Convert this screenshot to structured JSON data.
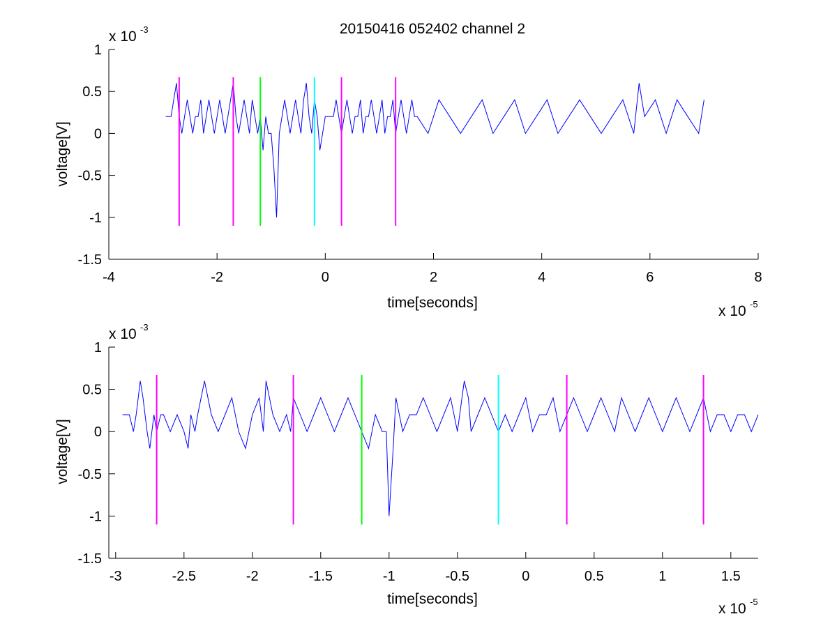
{
  "figure": {
    "title": "20150416 052402 channel 2",
    "colors": {
      "signal": "#0000ff",
      "marker_magenta": "#ff00ff",
      "marker_green": "#00ff00",
      "marker_cyan": "#00ffff",
      "axes": "#000000"
    }
  },
  "chart_data": [
    {
      "type": "line",
      "title": "20150416 052402 channel 2",
      "xlabel": "time[seconds]",
      "ylabel": "voltage[V]",
      "x_multiplier_label": {
        "base": "x 10",
        "exponent": "-5"
      },
      "y_multiplier_label": {
        "base": "x 10",
        "exponent": "-3"
      },
      "xlim": [
        -4,
        8
      ],
      "ylim": [
        -1.5,
        1
      ],
      "xticks": [
        -4,
        -2,
        0,
        2,
        4,
        6,
        8
      ],
      "xtick_labels": [
        "-4",
        "-2",
        "0",
        "2",
        "4",
        "6",
        "8"
      ],
      "yticks": [
        -1.5,
        -1,
        -0.5,
        0,
        0.5,
        1
      ],
      "ytick_labels": [
        "-1.5",
        "-1",
        "-0.5",
        "0",
        "0.5",
        "1"
      ],
      "grid": false,
      "series": [
        {
          "x": [
            -2.95,
            -2.9,
            -2.85,
            -2.8,
            -2.75,
            -2.7,
            -2.65,
            -2.6,
            -2.55,
            -2.5,
            -2.45,
            -2.4,
            -2.35,
            -2.3,
            -2.25,
            -2.2,
            -2.15,
            -2.1,
            -2.05,
            -2.0,
            -1.95,
            -1.9,
            -1.85,
            -1.8,
            -1.75,
            -1.7,
            -1.65,
            -1.6,
            -1.55,
            -1.5,
            -1.45,
            -1.4,
            -1.35,
            -1.3,
            -1.25,
            -1.2,
            -1.15,
            -1.1,
            -1.05,
            -1.0,
            -0.95,
            -0.9,
            -0.85,
            -0.8,
            -0.75,
            -0.7,
            -0.65,
            -0.6,
            -0.55,
            -0.5,
            -0.45,
            -0.4,
            -0.35,
            -0.3,
            -0.25,
            -0.2,
            -0.15,
            -0.1,
            -0.05,
            0.0,
            0.05,
            0.1,
            0.15,
            0.2,
            0.25,
            0.3,
            0.35,
            0.4,
            0.45,
            0.5,
            0.55,
            0.6,
            0.65,
            0.7,
            0.75,
            0.8,
            0.85,
            0.9,
            0.95,
            1.0,
            1.05,
            1.1,
            1.15,
            1.2,
            1.25,
            1.3,
            1.35,
            1.4,
            1.45,
            1.5,
            1.55,
            1.6,
            1.65,
            1.7,
            1.9,
            2.1,
            2.3,
            2.5,
            2.7,
            2.9,
            3.1,
            3.3,
            3.5,
            3.7,
            3.9,
            4.1,
            4.3,
            4.5,
            4.7,
            4.9,
            5.1,
            5.3,
            5.5,
            5.7,
            5.8,
            5.9,
            6.1,
            6.3,
            6.5,
            6.7,
            6.9,
            7.0
          ],
          "values": [
            0.2,
            0.2,
            0.2,
            0.4,
            0.6,
            0.2,
            0.0,
            0.2,
            0.4,
            0.2,
            0.0,
            0.2,
            0.2,
            0.4,
            0.0,
            0.2,
            0.4,
            0.2,
            0.0,
            0.2,
            0.4,
            0.2,
            0.0,
            0.2,
            0.4,
            0.6,
            0.2,
            0.0,
            0.2,
            0.4,
            0.2,
            0.0,
            0.4,
            0.2,
            0.0,
            0.2,
            -0.2,
            0.2,
            0.0,
            0.0,
            -0.4,
            -1.0,
            0.0,
            0.2,
            0.4,
            0.2,
            0.0,
            0.2,
            0.4,
            0.2,
            0.0,
            0.4,
            0.6,
            0.2,
            0.0,
            0.4,
            0.2,
            -0.2,
            0.0,
            0.2,
            0.2,
            0.2,
            0.2,
            0.4,
            0.2,
            0.0,
            0.2,
            0.4,
            0.2,
            0.0,
            0.2,
            0.2,
            0.4,
            0.0,
            0.2,
            0.2,
            0.4,
            0.2,
            0.0,
            0.2,
            0.4,
            0.0,
            0.2,
            0.2,
            0.4,
            0.0,
            0.2,
            0.4,
            0.2,
            0.0,
            0.2,
            0.4,
            0.2,
            0.2,
            0.0,
            0.4,
            0.2,
            0.0,
            0.2,
            0.4,
            0.0,
            0.2,
            0.4,
            0.0,
            0.2,
            0.4,
            0.0,
            0.2,
            0.4,
            0.2,
            0.0,
            0.2,
            0.4,
            0.0,
            0.6,
            0.2,
            0.4,
            0.0,
            0.4,
            0.2,
            0.0,
            0.4
          ]
        }
      ],
      "markers": [
        {
          "x": -2.7,
          "y_bottom": -1.1,
          "y_top": 0.67,
          "color": "#ff00ff"
        },
        {
          "x": -1.7,
          "y_bottom": -1.1,
          "y_top": 0.67,
          "color": "#ff00ff"
        },
        {
          "x": -1.2,
          "y_bottom": -1.1,
          "y_top": 0.67,
          "color": "#00ff00"
        },
        {
          "x": -0.2,
          "y_bottom": -1.1,
          "y_top": 0.67,
          "color": "#00ffff"
        },
        {
          "x": 0.3,
          "y_bottom": -1.1,
          "y_top": 0.67,
          "color": "#ff00ff"
        },
        {
          "x": 1.3,
          "y_bottom": -1.1,
          "y_top": 0.67,
          "color": "#ff00ff"
        }
      ]
    },
    {
      "type": "line",
      "xlabel": "time[seconds]",
      "ylabel": "voltage[V]",
      "x_multiplier_label": {
        "base": "x 10",
        "exponent": "-5"
      },
      "y_multiplier_label": {
        "base": "x 10",
        "exponent": "-3"
      },
      "xlim": [
        -3.05,
        1.7
      ],
      "ylim": [
        -1.5,
        1
      ],
      "xticks": [
        -3,
        -2.5,
        -2,
        -1.5,
        -1,
        -0.5,
        0,
        0.5,
        1,
        1.5
      ],
      "xtick_labels": [
        "-3",
        "-2.5",
        "-2",
        "-1.5",
        "-1",
        "-0.5",
        "0",
        "0.5",
        "1",
        "1.5"
      ],
      "yticks": [
        -1.5,
        -1,
        -0.5,
        0,
        0.5,
        1
      ],
      "ytick_labels": [
        "-1.5",
        "-1",
        "-0.5",
        "0",
        "0.5",
        "1"
      ],
      "grid": false,
      "series": [
        {
          "x": [
            -2.95,
            -2.9,
            -2.87,
            -2.85,
            -2.82,
            -2.8,
            -2.77,
            -2.75,
            -2.72,
            -2.7,
            -2.67,
            -2.65,
            -2.6,
            -2.55,
            -2.5,
            -2.47,
            -2.45,
            -2.42,
            -2.4,
            -2.35,
            -2.3,
            -2.25,
            -2.2,
            -2.15,
            -2.1,
            -2.05,
            -2.0,
            -1.95,
            -1.92,
            -1.9,
            -1.85,
            -1.8,
            -1.75,
            -1.72,
            -1.7,
            -1.65,
            -1.6,
            -1.55,
            -1.5,
            -1.45,
            -1.4,
            -1.35,
            -1.3,
            -1.25,
            -1.2,
            -1.15,
            -1.1,
            -1.05,
            -1.02,
            -1.0,
            -0.97,
            -0.95,
            -0.9,
            -0.85,
            -0.8,
            -0.75,
            -0.7,
            -0.65,
            -0.6,
            -0.55,
            -0.5,
            -0.45,
            -0.42,
            -0.4,
            -0.35,
            -0.3,
            -0.25,
            -0.2,
            -0.15,
            -0.1,
            -0.05,
            0.0,
            0.05,
            0.1,
            0.15,
            0.2,
            0.25,
            0.3,
            0.35,
            0.4,
            0.45,
            0.5,
            0.55,
            0.6,
            0.65,
            0.7,
            0.75,
            0.8,
            0.85,
            0.9,
            0.95,
            1.0,
            1.05,
            1.1,
            1.15,
            1.2,
            1.25,
            1.3,
            1.35,
            1.4,
            1.45,
            1.5,
            1.55,
            1.6,
            1.65,
            1.7
          ],
          "values": [
            0.2,
            0.2,
            0.0,
            0.2,
            0.6,
            0.4,
            0.0,
            -0.2,
            0.2,
            0.0,
            0.2,
            0.2,
            0.0,
            0.2,
            0.0,
            -0.2,
            0.2,
            0.0,
            0.2,
            0.6,
            0.2,
            0.0,
            0.2,
            0.4,
            0.0,
            -0.2,
            0.2,
            0.4,
            0.0,
            0.6,
            0.2,
            0.0,
            0.2,
            0.0,
            0.4,
            0.2,
            0.0,
            0.2,
            0.4,
            0.2,
            0.0,
            0.2,
            0.4,
            0.2,
            0.0,
            -0.2,
            0.2,
            0.0,
            0.0,
            -1.0,
            -0.2,
            0.4,
            0.0,
            0.2,
            0.2,
            0.4,
            0.2,
            0.0,
            0.2,
            0.4,
            0.0,
            0.6,
            0.4,
            0.0,
            0.2,
            0.4,
            0.2,
            0.0,
            0.2,
            0.0,
            0.2,
            0.4,
            0.0,
            0.2,
            0.2,
            0.4,
            0.0,
            0.2,
            0.4,
            0.2,
            0.0,
            0.2,
            0.4,
            0.2,
            0.0,
            0.4,
            0.2,
            0.0,
            0.2,
            0.4,
            0.2,
            0.0,
            0.2,
            0.4,
            0.2,
            0.0,
            0.2,
            0.4,
            0.0,
            0.2,
            0.2,
            0.0,
            0.2,
            0.2,
            0.0,
            0.2
          ]
        }
      ],
      "markers": [
        {
          "x": -2.7,
          "y_bottom": -1.1,
          "y_top": 0.67,
          "color": "#ff00ff"
        },
        {
          "x": -1.7,
          "y_bottom": -1.1,
          "y_top": 0.67,
          "color": "#ff00ff"
        },
        {
          "x": -1.2,
          "y_bottom": -1.1,
          "y_top": 0.67,
          "color": "#00ff00"
        },
        {
          "x": -0.2,
          "y_bottom": -1.1,
          "y_top": 0.67,
          "color": "#00ffff"
        },
        {
          "x": 0.3,
          "y_bottom": -1.1,
          "y_top": 0.67,
          "color": "#ff00ff"
        },
        {
          "x": 1.3,
          "y_bottom": -1.1,
          "y_top": 0.67,
          "color": "#ff00ff"
        }
      ]
    }
  ]
}
